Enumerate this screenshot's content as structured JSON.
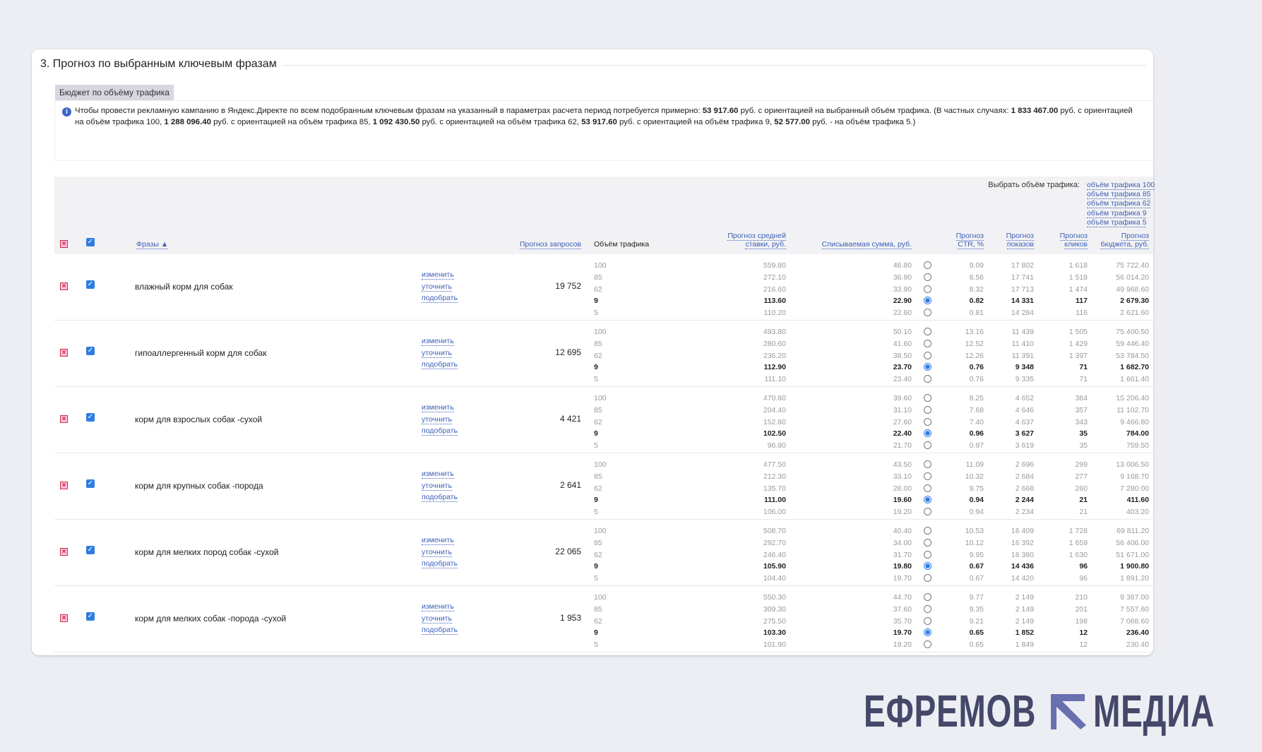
{
  "section_title": "3. Прогноз по выбранным ключевым фразам",
  "tab_label": "Бюджет по объёму трафика",
  "info": {
    "icon": "info-icon",
    "parts": [
      "Чтобы провести рекламную кампанию в Яндекс.Директе по всем подобранным ключевым фразам на указанный в параметрах расчета период потребуется примерно: ",
      "53 917.60",
      " руб. с ориентацией на выбранный объём трафика. (В частных случаях: ",
      "1 833 467.00",
      " руб. с ориентацией на объём трафика 100, ",
      "1 288 096.40",
      " руб. с ориентацией на объём трафика 85, ",
      "1 092 430.50",
      " руб. с ориентацией на объём трафика 62, ",
      "53 917.60",
      " руб. с ориентацией на объём трафика 9, ",
      "52 577.00",
      " руб. - на объём трафика 5.)"
    ]
  },
  "header": {
    "select_label": "Выбрать объём трафика:",
    "select_options": [
      "объём трафика 100",
      "объём трафика 85",
      "объём трафика 62",
      "объём трафика 9",
      "объём трафика 5"
    ],
    "phrases": "Фразы ▲",
    "requests": "Прогноз запросов",
    "volume": "Объём трафика",
    "bid": [
      "Прогноз средней",
      "ставки, руб."
    ],
    "charge": "Списываемая сумма, руб.",
    "ctr": [
      "Прогноз",
      "CTR, %"
    ],
    "shows": [
      "Прогноз",
      "показов"
    ],
    "clicks": [
      "Прогноз",
      "кликов"
    ],
    "budget": [
      "Прогноз",
      "бюджета, руб."
    ]
  },
  "actions": [
    "изменить",
    "уточнить",
    "подобрать"
  ],
  "colors": {
    "accent": "#2f7de1",
    "link": "#3c5fb5",
    "logo": "#454869",
    "logo_arrow": "#6a6fb0"
  },
  "rows": [
    {
      "phrase": "влажный корм для собак",
      "requests": "19 752",
      "selected": 3,
      "levels": [
        [
          "100",
          "559.80",
          "46.80",
          "9.09",
          "17 802",
          "1 618",
          "75 722.40"
        ],
        [
          "85",
          "272.10",
          "36.90",
          "8.56",
          "17 741",
          "1 518",
          "56 014.20"
        ],
        [
          "62",
          "216.60",
          "33.90",
          "8.32",
          "17 713",
          "1 474",
          "49 968.60"
        ],
        [
          "9",
          "113.60",
          "22.90",
          "0.82",
          "14 331",
          "117",
          "2 679.30"
        ],
        [
          "5",
          "110.20",
          "22.60",
          "0.81",
          "14 284",
          "116",
          "2 621.60"
        ]
      ]
    },
    {
      "phrase": "гипоаллергенный корм для собак",
      "requests": "12 695",
      "selected": 3,
      "levels": [
        [
          "100",
          "493.80",
          "50.10",
          "13.16",
          "11 439",
          "1 505",
          "75 400.50"
        ],
        [
          "85",
          "280.60",
          "41.60",
          "12.52",
          "11 410",
          "1 429",
          "59 446.40"
        ],
        [
          "62",
          "236.20",
          "38.50",
          "12.26",
          "11 391",
          "1 397",
          "53 784.50"
        ],
        [
          "9",
          "112.90",
          "23.70",
          "0.76",
          "9 348",
          "71",
          "1 682.70"
        ],
        [
          "5",
          "111.10",
          "23.40",
          "0.76",
          "9 335",
          "71",
          "1 661.40"
        ]
      ]
    },
    {
      "phrase": "корм для взрослых собак -сухой",
      "requests": "4 421",
      "selected": 3,
      "levels": [
        [
          "100",
          "470.80",
          "39.60",
          "8.25",
          "4 652",
          "384",
          "15 206.40"
        ],
        [
          "85",
          "204.40",
          "31.10",
          "7.68",
          "4 646",
          "357",
          "11 102.70"
        ],
        [
          "62",
          "152.80",
          "27.60",
          "7.40",
          "4 637",
          "343",
          "9 466.80"
        ],
        [
          "9",
          "102.50",
          "22.40",
          "0.96",
          "3 627",
          "35",
          "784.00"
        ],
        [
          "5",
          "96.80",
          "21.70",
          "0.97",
          "3 619",
          "35",
          "759.50"
        ]
      ]
    },
    {
      "phrase": "корм для крупных собак -порода",
      "requests": "2 641",
      "selected": 3,
      "levels": [
        [
          "100",
          "477.50",
          "43.50",
          "11.09",
          "2 696",
          "299",
          "13 006.50"
        ],
        [
          "85",
          "212.30",
          "33.10",
          "10.32",
          "2 684",
          "277",
          "9 168.70"
        ],
        [
          "62",
          "135.70",
          "28.00",
          "9.75",
          "2 668",
          "260",
          "7 280.00"
        ],
        [
          "9",
          "111.00",
          "19.60",
          "0.94",
          "2 244",
          "21",
          "411.60"
        ],
        [
          "5",
          "106.00",
          "19.20",
          "0.94",
          "2 234",
          "21",
          "403.20"
        ]
      ]
    },
    {
      "phrase": "корм для мелких пород собак -сухой",
      "requests": "22 065",
      "selected": 3,
      "levels": [
        [
          "100",
          "508.70",
          "40.40",
          "10.53",
          "16 409",
          "1 728",
          "69 811.20"
        ],
        [
          "85",
          "292.70",
          "34.00",
          "10.12",
          "16 392",
          "1 659",
          "56 406.00"
        ],
        [
          "62",
          "246.40",
          "31.70",
          "9.95",
          "16 380",
          "1 630",
          "51 671.00"
        ],
        [
          "9",
          "105.90",
          "19.80",
          "0.67",
          "14 436",
          "96",
          "1 900.80"
        ],
        [
          "5",
          "104.40",
          "19.70",
          "0.67",
          "14 420",
          "96",
          "1 891.20"
        ]
      ]
    },
    {
      "phrase": "корм для мелких собак -порода -сухой",
      "requests": "1 953",
      "selected": 3,
      "levels": [
        [
          "100",
          "550.30",
          "44.70",
          "9.77",
          "2 149",
          "210",
          "9 387.00"
        ],
        [
          "85",
          "309.30",
          "37.60",
          "9.35",
          "2 149",
          "201",
          "7 557.60"
        ],
        [
          "62",
          "275.50",
          "35.70",
          "9.21",
          "2 149",
          "198",
          "7 068.60"
        ],
        [
          "9",
          "103.30",
          "19.70",
          "0.65",
          "1 852",
          "12",
          "236.40"
        ],
        [
          "5",
          "101.90",
          "19.20",
          "0.65",
          "1 849",
          "12",
          "230.40"
        ]
      ]
    }
  ],
  "logo": {
    "left": "ЕФРЕМОВ",
    "right": "МЕДИА"
  }
}
